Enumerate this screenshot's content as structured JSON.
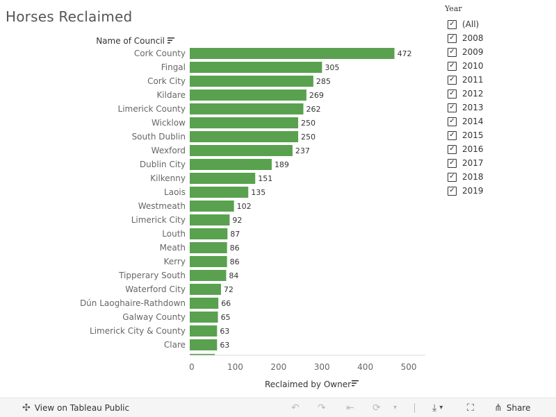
{
  "title": "Horses Reclaimed",
  "chart_data": {
    "type": "bar",
    "orientation": "horizontal",
    "title": "Horses Reclaimed",
    "category_axis_label": "Name of  Council",
    "value_axis_label": "Reclaimed by Owner",
    "categories": [
      "Cork County",
      "Fingal",
      "Cork City",
      "Kildare",
      "Limerick County",
      "Wicklow",
      "South Dublin",
      "Wexford",
      "Dublin City",
      "Kilkenny",
      "Laois",
      "Westmeath",
      "Limerick City",
      "Louth",
      "Meath",
      "Kerry",
      "Tipperary South",
      "Waterford City",
      "Dún Laoghaire-Rathdown",
      "Galway County",
      "Limerick City & County",
      "Clare"
    ],
    "values": [
      472,
      305,
      285,
      269,
      262,
      250,
      250,
      237,
      189,
      151,
      135,
      102,
      92,
      87,
      86,
      86,
      84,
      72,
      66,
      65,
      63,
      63
    ],
    "xlim": [
      0,
      540
    ],
    "ticks": [
      0,
      100,
      200,
      300,
      400,
      500
    ],
    "bar_color": "#59a14f",
    "grid": false
  },
  "filter": {
    "title": "Year",
    "check_mark": "✓",
    "items": [
      "(All)",
      "2008",
      "2009",
      "2010",
      "2011",
      "2012",
      "2013",
      "2014",
      "2015",
      "2016",
      "2017",
      "2018",
      "2019"
    ]
  },
  "footer": {
    "view_label": "View on Tableau Public",
    "share_label": "Share",
    "icons": {
      "tableau": "✣",
      "undo": "↶",
      "redo": "↷",
      "revert": "⇤",
      "refresh": "⟳",
      "more": "▾",
      "download": "⤓",
      "fullscreen": "⛶",
      "share": "⋔"
    }
  }
}
